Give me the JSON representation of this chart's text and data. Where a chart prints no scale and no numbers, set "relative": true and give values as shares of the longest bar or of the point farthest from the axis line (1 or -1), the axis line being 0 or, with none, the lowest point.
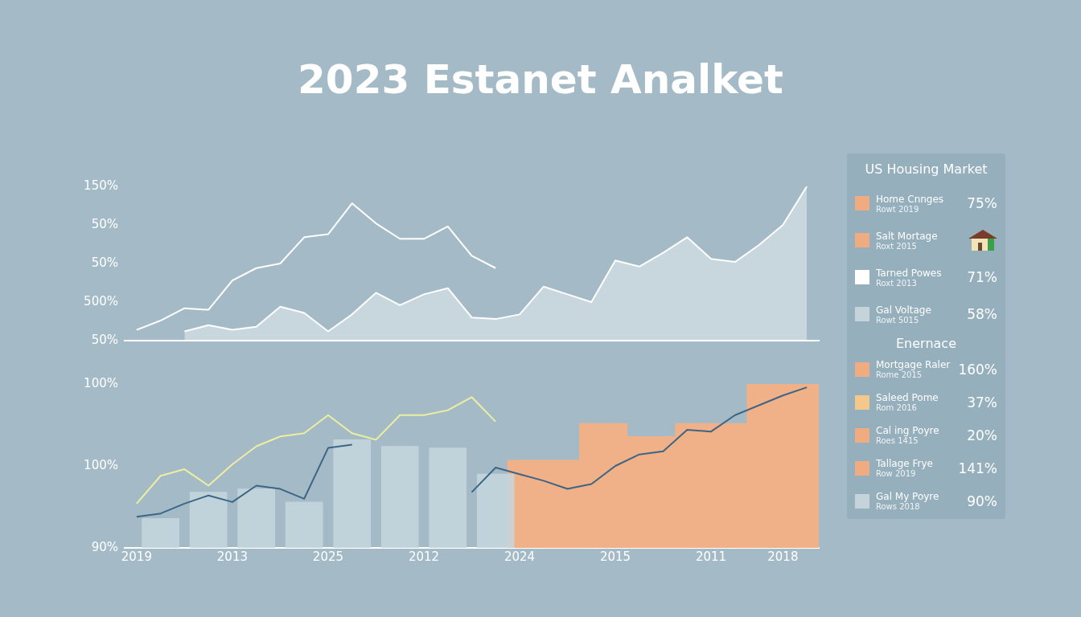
{
  "chart_data": [
    {
      "type": "line",
      "title": "2023 Estanet Analket",
      "relative": true,
      "marker": "none",
      "categories": [
        null,
        null,
        null,
        null,
        null,
        null,
        null,
        null,
        null,
        null,
        null,
        null,
        null,
        null,
        null,
        null,
        null,
        null,
        null,
        null,
        null,
        null,
        null,
        null,
        null,
        null,
        null,
        null,
        null
      ],
      "annotations": [
        "150%",
        "50%",
        "50%",
        "500%",
        "50%"
      ],
      "series": [
        {
          "type": "line",
          "color": "#ffffff",
          "values": [
            0.07,
            0.13,
            0.21,
            0.2,
            0.39,
            0.47,
            0.5,
            0.67,
            0.69,
            0.89,
            0.76,
            0.66,
            0.66,
            0.74,
            0.55,
            0.47,
            null,
            null,
            null,
            null,
            null,
            null,
            null,
            null,
            null,
            null,
            null,
            null,
            null
          ]
        },
        {
          "type": "area",
          "color": "#ffffff",
          "values": [
            null,
            null,
            0.06,
            0.1,
            0.07,
            0.09,
            0.22,
            0.18,
            0.06,
            0.17,
            0.31,
            0.23,
            0.3,
            0.34,
            0.15,
            0.14,
            0.17,
            0.35,
            0.3,
            0.25,
            0.52,
            0.48,
            0.57,
            0.67,
            0.53,
            0.51,
            0.62,
            0.75,
            1.0
          ]
        }
      ]
    },
    {
      "type": "bar",
      "relative": true,
      "marker": "none",
      "categories": [
        "2019",
        null,
        null,
        null,
        "2013",
        null,
        null,
        null,
        "2025",
        null,
        null,
        null,
        "2012",
        null,
        null,
        null,
        "2024",
        null,
        null,
        null,
        "2015",
        null,
        null,
        null,
        "2011",
        null,
        null,
        "2018",
        null
      ],
      "annotations": [
        "100%",
        "100%",
        "90%"
      ],
      "series": [
        {
          "type": "bar",
          "color": "#c5d7dc",
          "values": [
            null,
            0.18,
            null,
            0.34,
            null,
            0.36,
            null,
            0.28,
            null,
            0.66,
            null,
            0.62,
            null,
            0.61,
            null,
            0.45,
            null,
            null,
            null,
            null,
            null,
            null,
            null,
            null,
            null,
            null,
            null,
            null,
            null
          ]
        },
        {
          "type": "bar",
          "color": "#f0b088",
          "values": [
            null,
            null,
            null,
            null,
            null,
            null,
            null,
            null,
            null,
            null,
            null,
            null,
            null,
            null,
            null,
            null,
            0.535,
            0.535,
            0.535,
            0.76,
            0.76,
            0.68,
            0.68,
            0.76,
            0.76,
            0.76,
            1.0,
            1.0,
            1.0
          ]
        },
        {
          "type": "line",
          "color": "#eeeea0",
          "values": [
            0.27,
            0.44,
            0.48,
            0.38,
            0.51,
            0.62,
            0.68,
            0.7,
            0.81,
            0.7,
            0.66,
            0.81,
            0.81,
            0.84,
            0.92,
            0.77,
            null,
            null,
            null,
            null,
            null,
            null,
            null,
            null,
            null,
            null,
            null,
            null,
            null
          ]
        },
        {
          "type": "line",
          "color": "#3d6585",
          "values": [
            0.19,
            0.21,
            0.27,
            0.32,
            0.28,
            0.38,
            0.36,
            0.3,
            0.61,
            0.63,
            null,
            null,
            null,
            null,
            0.34,
            0.49,
            0.45,
            0.41,
            0.36,
            0.39,
            0.5,
            0.57,
            0.59,
            0.72,
            0.71,
            0.81,
            0.87,
            0.93,
            0.98
          ]
        }
      ]
    },
    {
      "type": "other",
      "title": "US Housing Market",
      "subtitle": "Enernace",
      "categories": [
        "Home Cnnges",
        "Salt Mortage",
        "Tarned Powes",
        "Gal Voltage",
        "Mortgage Raler",
        "Saleed Pome",
        "Cal ing Poyre",
        "Tallage Frye",
        "Gal My Poyre"
      ],
      "annotations": [
        "Rowt 2019",
        "Roxt 2015",
        "Roxt 2013",
        "Rowt 5015",
        "Rome 2015",
        "Rom 2016",
        "Roes 1415",
        "Row 2019",
        "Rows 2018"
      ],
      "colors": [
        "#f0ac80",
        "#f0ac80",
        "#ffffff",
        "#c4d4da",
        "#f0ac80",
        "#f4c88a",
        "#f0ac80",
        "#f0ac80",
        "#c4d4da"
      ],
      "value_labels": [
        "75%",
        null,
        "71%",
        "58%",
        "160%",
        "37%",
        "20%",
        "141%",
        "90%"
      ]
    }
  ]
}
